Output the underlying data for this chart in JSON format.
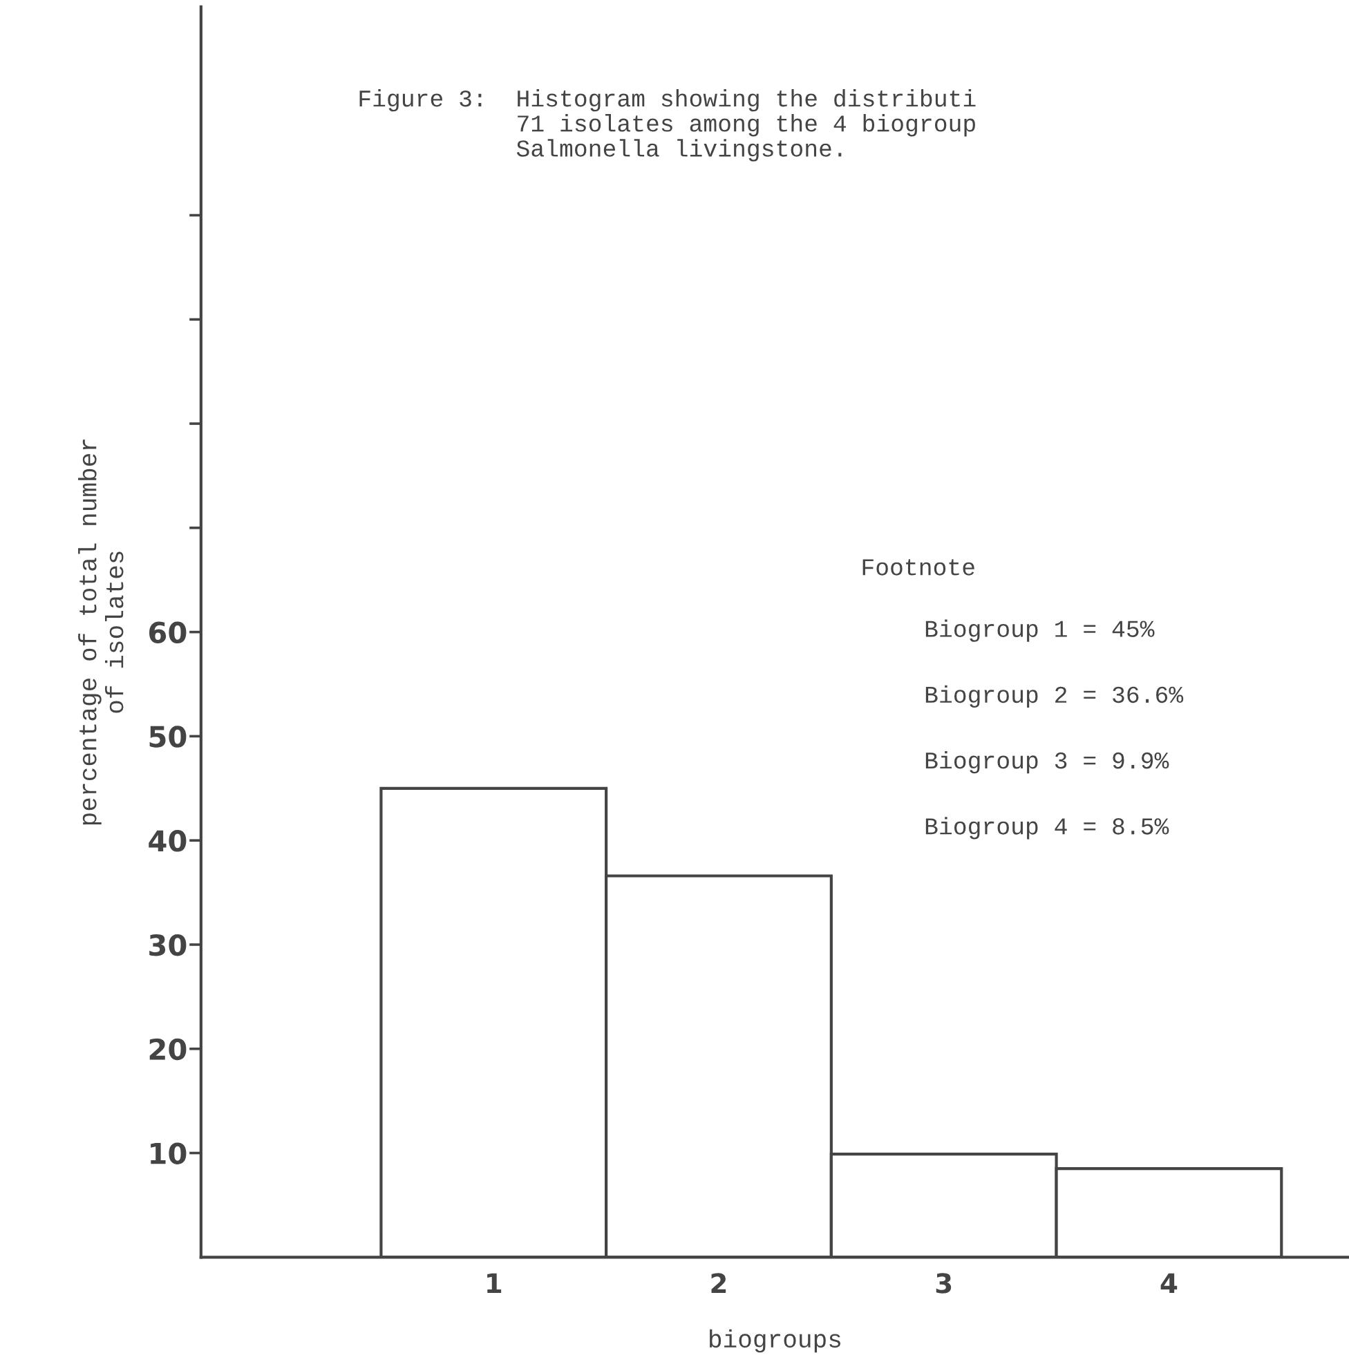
{
  "chart_data": {
    "type": "bar",
    "title": "Figure 3:  Histogram showing the distributi\n           71 isolates among the 4 biogroup\n           Salmonella livingstone.",
    "xlabel": "biogroups",
    "ylabel": "percentage of total number\nof isolates",
    "categories": [
      "1",
      "2",
      "3",
      "4"
    ],
    "values": [
      45,
      36.6,
      9.9,
      8.5
    ],
    "color": "#ffffff",
    "ylim": [
      0,
      120
    ],
    "yticks": [
      10,
      20,
      30,
      40,
      50,
      60,
      {
        "value": 70,
        "label": null
      },
      {
        "value": 80,
        "label": null
      },
      {
        "value": 90,
        "label": null
      },
      {
        "value": 100,
        "label": null
      }
    ],
    "annotations": [
      "Footnote",
      "Biogroup 1 = 45%",
      "Biogroup 2 = 36.6%",
      "Biogroup 3 = 9.9%",
      "Biogroup 4 = 8.5%"
    ],
    "grid": false,
    "legend": false
  }
}
